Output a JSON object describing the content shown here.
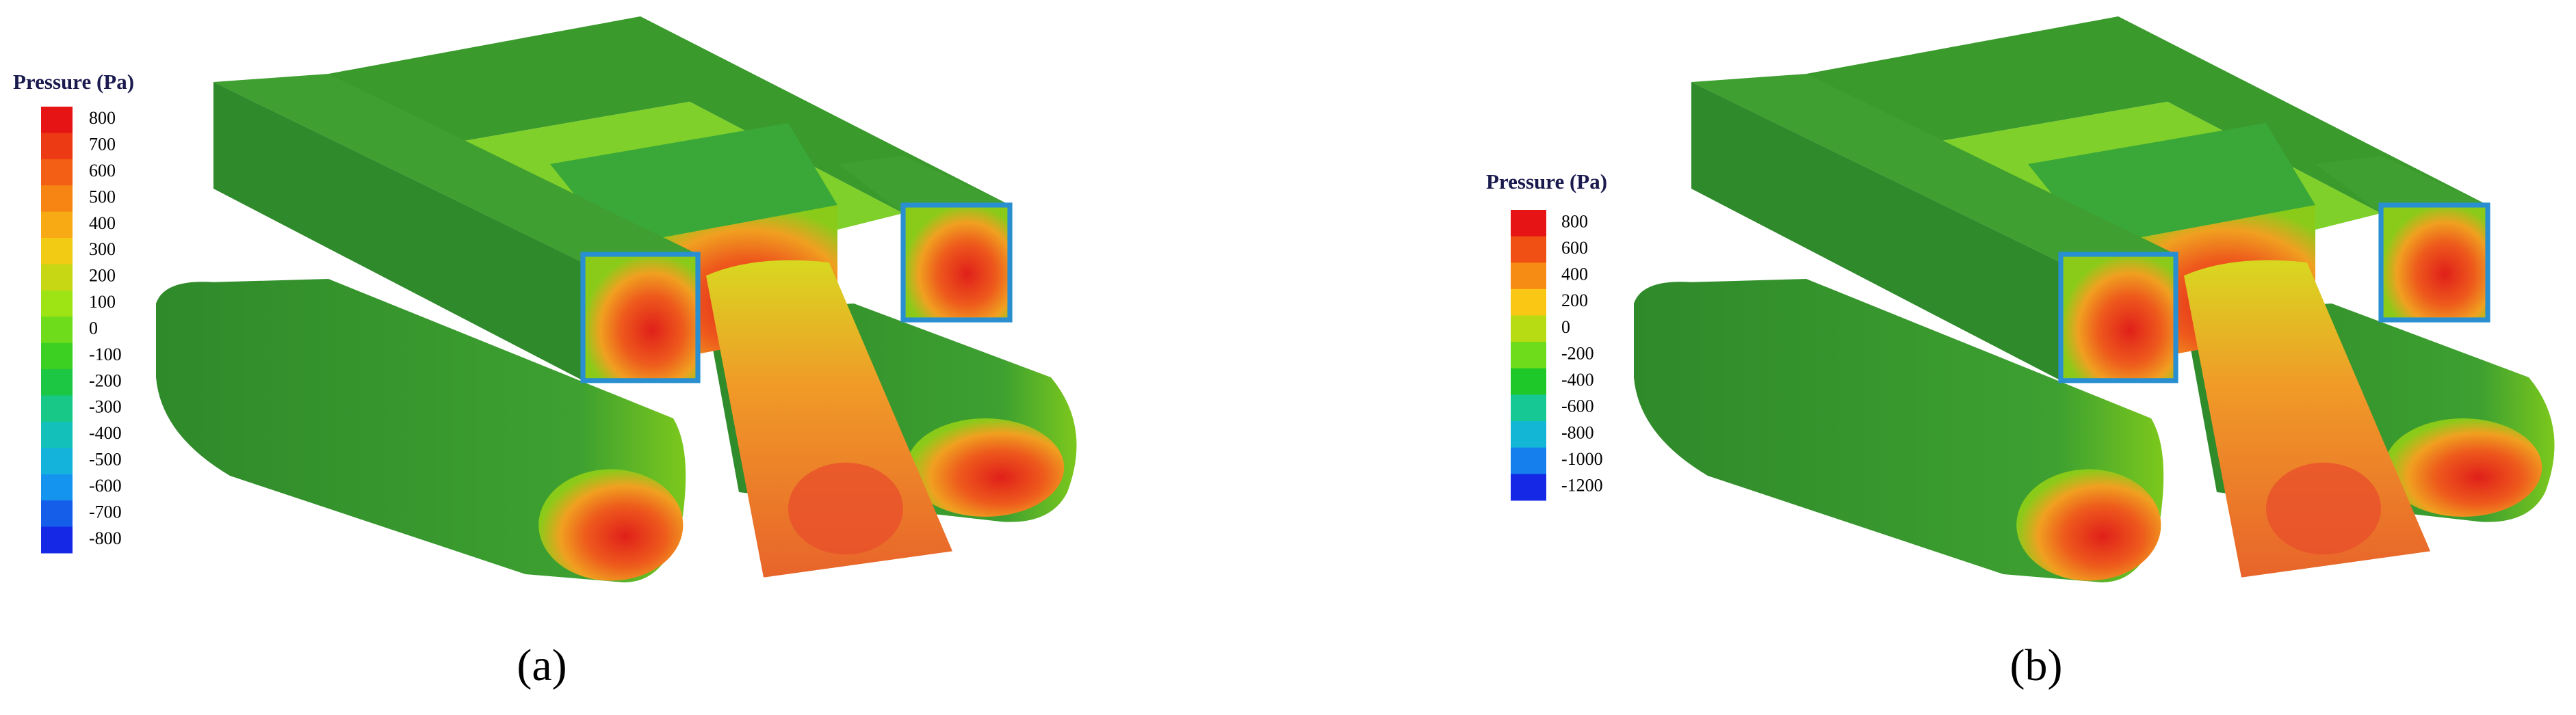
{
  "panels": [
    {
      "legend_title": "Pressure (Pa)",
      "legend_labels": [
        800,
        700,
        600,
        500,
        400,
        300,
        200,
        100,
        0,
        -100,
        -200,
        -300,
        -400,
        -500,
        -600,
        -700,
        -800
      ],
      "caption": "(a)"
    },
    {
      "legend_title": "Pressure (Pa)",
      "legend_labels": [
        800,
        600,
        400,
        200,
        0,
        -200,
        -400,
        -600,
        -800,
        -1000,
        -1200
      ],
      "caption": "(b)"
    }
  ]
}
